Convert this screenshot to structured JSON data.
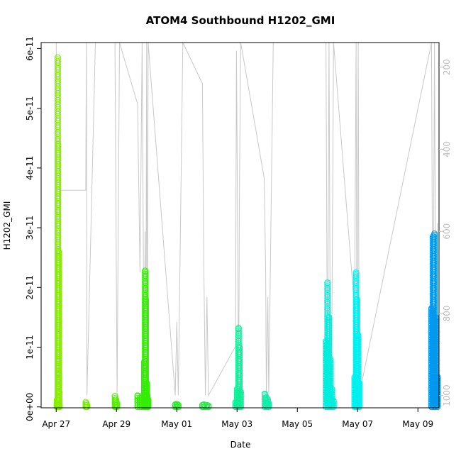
{
  "chart_data": {
    "type": "scatter",
    "title": "ATOM4 Southbound H1202_GMI",
    "xlabel": "Date",
    "ylabel": "H1202_GMI",
    "x_tick_labels": [
      "Apr 27",
      "Apr 29",
      "May 01",
      "May 03",
      "May 05",
      "May 07",
      "May 09"
    ],
    "y_tick_labels": [
      "0e+00",
      "1e-11",
      "2e-11",
      "3e-11",
      "4e-11",
      "5e-11",
      "6e-11"
    ],
    "y_ticks": [
      0,
      1e-11,
      2e-11,
      3e-11,
      4e-11,
      5e-11,
      6e-11
    ],
    "y2_tick_labels": [
      "200",
      "400",
      "600",
      "800",
      "1000"
    ],
    "y2_ticks": [
      200,
      400,
      600,
      800,
      1000
    ],
    "y2_reversed": true,
    "xlim_days_from_apr27": [
      -0.5,
      12.7
    ],
    "ylim": [
      -1.5e-13,
      6.1e-11
    ],
    "y2lim": [
      1030,
      140
    ],
    "grid": false,
    "legend": "none",
    "colors": {
      "pressure_line": "#c8c8c8"
    },
    "series": [
      {
        "color": "#88ee00",
        "x": [
          0.02,
          0.03,
          0.05,
          0.06,
          0.08,
          0.09,
          0.1,
          0.11
        ],
        "y": [
          5e-13,
          1.2e-12,
          5.85e-11,
          4.4e-11,
          2.6e-11,
          5.5e-12,
          2.5e-12,
          4e-13
        ]
      },
      {
        "color": "#78ee00",
        "x": [
          0.98,
          1.0,
          1.02
        ],
        "y": [
          8e-13,
          6e-13,
          3e-13
        ]
      },
      {
        "color": "#55ee00",
        "x": [
          1.95,
          1.98,
          2.02
        ],
        "y": [
          1.8e-12,
          1.2e-12,
          6e-13
        ]
      },
      {
        "color": "#33ee00",
        "x": [
          2.7,
          2.78,
          2.85,
          2.92,
          2.95,
          2.97,
          3.0,
          3.02,
          3.05
        ],
        "y": [
          1.9e-12,
          1.5e-12,
          1.8e-12,
          7.5e-12,
          2.28e-11,
          1.8e-11,
          4e-12,
          2e-12,
          1.2e-12
        ]
      },
      {
        "color": "#22ee22",
        "x": [
          3.95,
          4.0,
          4.05
        ],
        "y": [
          4e-13,
          5e-13,
          3e-13
        ]
      },
      {
        "color": "#22ee44",
        "x": [
          4.85,
          4.9,
          4.95,
          5.0,
          5.05
        ],
        "y": [
          3e-13,
          4e-13,
          2e-13,
          3e-13,
          2e-13
        ]
      },
      {
        "color": "#11ee99",
        "x": [
          5.95,
          6.0,
          6.05,
          6.08,
          6.12
        ],
        "y": [
          8e-13,
          3e-12,
          1.32e-11,
          1e-11,
          2.5e-12
        ]
      },
      {
        "color": "#11eeaa",
        "x": [
          6.92,
          6.97,
          7.02,
          7.05
        ],
        "y": [
          2.2e-12,
          1.6e-12,
          1.2e-12,
          6e-13
        ]
      },
      {
        "color": "#00eedd",
        "x": [
          8.95,
          9.0,
          9.05,
          9.1,
          9.15,
          9.2
        ],
        "y": [
          1.1e-11,
          2.08e-11,
          1.5e-11,
          8e-12,
          3e-12,
          1e-12
        ]
      },
      {
        "color": "#00f0f0",
        "x": [
          9.9,
          9.95,
          9.98,
          10.02,
          10.05
        ],
        "y": [
          5e-12,
          2.25e-11,
          1.8e-11,
          1.2e-11,
          4e-12
        ]
      },
      {
        "color": "#0099ee",
        "x": [
          12.45,
          12.5,
          12.55,
          12.6,
          12.65
        ],
        "y": [
          1.65e-11,
          2.85e-11,
          2.9e-11,
          1.5e-11,
          5e-12
        ]
      }
    ],
    "pressure_series": {
      "x": [
        0,
        0.04,
        0.06,
        0.08,
        0.12,
        0.98,
        1.0,
        1.02,
        1.3,
        1.95,
        2.0,
        2.02,
        2.1,
        2.7,
        2.78,
        2.85,
        2.92,
        2.95,
        2.97,
        3.0,
        3.02,
        3.05,
        3.95,
        4.0,
        4.05,
        4.2,
        4.85,
        4.9,
        4.95,
        5.0,
        5.05,
        5.95,
        5.98,
        6.02,
        6.05,
        6.08,
        6.12,
        6.9,
        6.95,
        6.97,
        7.02,
        7.05,
        7.2,
        8.95,
        9.0,
        9.05,
        9.1,
        9.15,
        9.2,
        9.9,
        9.95,
        9.98,
        10.02,
        10.05,
        12.45,
        12.5,
        12.55,
        12.6,
        12.65
      ],
      "y": [
        140,
        700,
        980,
        1000,
        500,
        500,
        140,
        1000,
        140,
        140,
        780,
        1000,
        140,
        290,
        700,
        140,
        1000,
        600,
        1000,
        140,
        1000,
        140,
        1000,
        820,
        1000,
        140,
        240,
        700,
        1000,
        760,
        1000,
        880,
        160,
        600,
        1000,
        480,
        140,
        470,
        700,
        1000,
        760,
        1000,
        140,
        140,
        1000,
        140,
        1000,
        790,
        140,
        790,
        140,
        1000,
        140,
        1000,
        140,
        1000,
        140,
        1000,
        580
      ]
    }
  }
}
